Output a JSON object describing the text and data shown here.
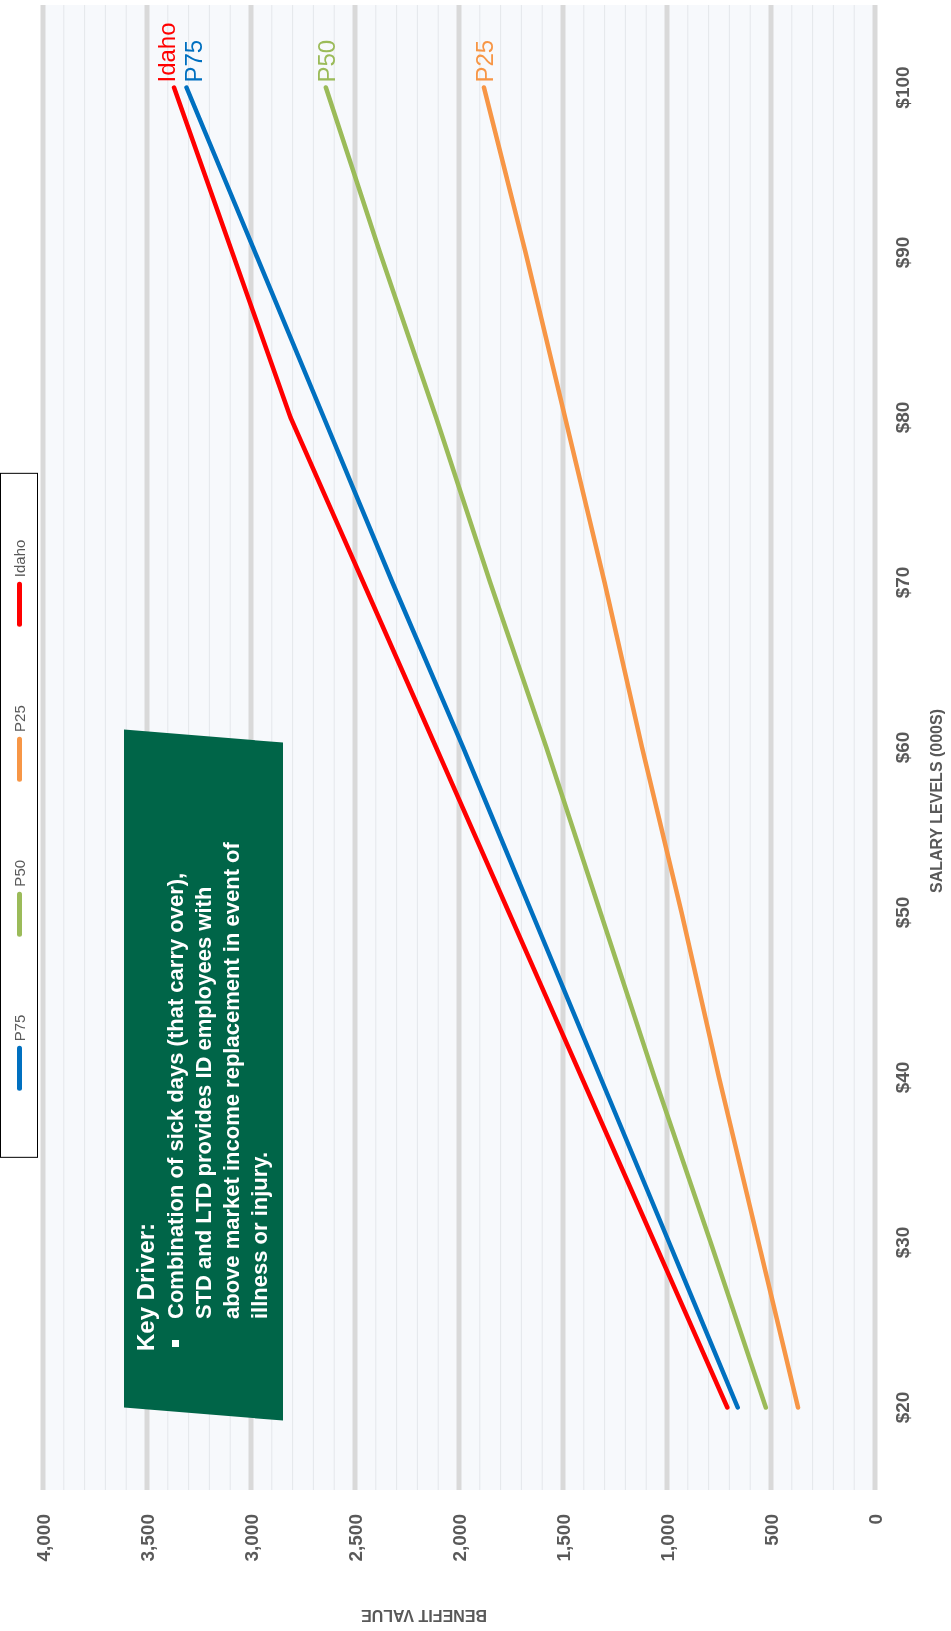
{
  "chart_data": {
    "type": "line",
    "xlabel": "BENEFIT VALUE",
    "ylabel": "SALARY LEVELS (000S)",
    "series": [
      {
        "name": "P75",
        "color": "#0070c0",
        "x": [
          660,
          990,
          1320,
          1650,
          1980,
          2320,
          2650,
          2980,
          3310
        ],
        "values": [
          20,
          30,
          40,
          50,
          60,
          70,
          80,
          90,
          100
        ]
      },
      {
        "name": "P50",
        "color": "#9bbb59",
        "x": [
          525,
          790,
          1060,
          1320,
          1580,
          1850,
          2110,
          2380,
          2640
        ],
        "values": [
          20,
          30,
          40,
          50,
          60,
          70,
          80,
          90,
          100
        ]
      },
      {
        "name": "P25",
        "color": "#f79646",
        "x": [
          370,
          560,
          750,
          930,
          1120,
          1300,
          1490,
          1680,
          1880
        ],
        "values": [
          20,
          30,
          40,
          50,
          60,
          70,
          80,
          90,
          100
        ]
      },
      {
        "name": "Idaho",
        "color": "#ff0000",
        "x": [
          710,
          1060,
          1410,
          1760,
          2110,
          2460,
          2810,
          3090,
          3370
        ],
        "values": [
          20,
          30,
          40,
          50,
          60,
          70,
          80,
          90,
          100
        ]
      }
    ],
    "xlim": [
      4000,
      0
    ],
    "xticks": [
      0,
      {
        "value": 100,
        "label": null
      },
      {
        "value": 200,
        "label": null
      },
      {
        "value": 300,
        "label": null
      },
      {
        "value": 400,
        "label": null
      },
      500,
      {
        "value": 600,
        "label": null
      },
      {
        "value": 700,
        "label": null
      },
      {
        "value": 800,
        "label": null
      },
      {
        "value": 900,
        "label": null
      },
      {
        "value": 1000,
        "label": "1,000"
      },
      {
        "value": 1100,
        "label": null
      },
      {
        "value": 1200,
        "label": null
      },
      {
        "value": 1300,
        "label": null
      },
      {
        "value": 1400,
        "label": null
      },
      {
        "value": 1500,
        "label": "1,500"
      },
      {
        "value": 1600,
        "label": null
      },
      {
        "value": 1700,
        "label": null
      },
      {
        "value": 1800,
        "label": null
      },
      {
        "value": 1900,
        "label": null
      },
      {
        "value": 2000,
        "label": "2,000"
      },
      {
        "value": 2100,
        "label": null
      },
      {
        "value": 2200,
        "label": null
      },
      {
        "value": 2300,
        "label": null
      },
      {
        "value": 2400,
        "label": null
      },
      {
        "value": 2500,
        "label": "2,500"
      },
      {
        "value": 2600,
        "label": null
      },
      {
        "value": 2700,
        "label": null
      },
      {
        "value": 2800,
        "label": null
      },
      {
        "value": 2900,
        "label": null
      },
      {
        "value": 3000,
        "label": "3,000"
      },
      {
        "value": 3100,
        "label": null
      },
      {
        "value": 3200,
        "label": null
      },
      {
        "value": 3300,
        "label": null
      },
      {
        "value": 3400,
        "label": null
      },
      {
        "value": 3500,
        "label": "3,500"
      },
      {
        "value": 3600,
        "label": null
      },
      {
        "value": 3700,
        "label": null
      },
      {
        "value": 3800,
        "label": null
      },
      {
        "value": 3900,
        "label": null
      },
      {
        "value": 4000,
        "label": "4,000"
      }
    ],
    "ylim": [
      15,
      105
    ],
    "yticks": [
      {
        "value": 20,
        "label": "$20"
      },
      {
        "value": 30,
        "label": "$30"
      },
      {
        "value": 40,
        "label": "$40"
      },
      {
        "value": 50,
        "label": "$50"
      },
      {
        "value": 60,
        "label": "$60"
      },
      {
        "value": 70,
        "label": "$70"
      },
      {
        "value": 80,
        "label": "$80"
      },
      {
        "value": 90,
        "label": "$90"
      },
      {
        "value": 100,
        "label": "$100"
      }
    ],
    "grid": "x",
    "legend": "left",
    "annotations": [
      "Key Driver:",
      "Combination of sick days (that carry over), STD and LTD provides ID employees with above market income replacement in event of illness or injury."
    ]
  }
}
